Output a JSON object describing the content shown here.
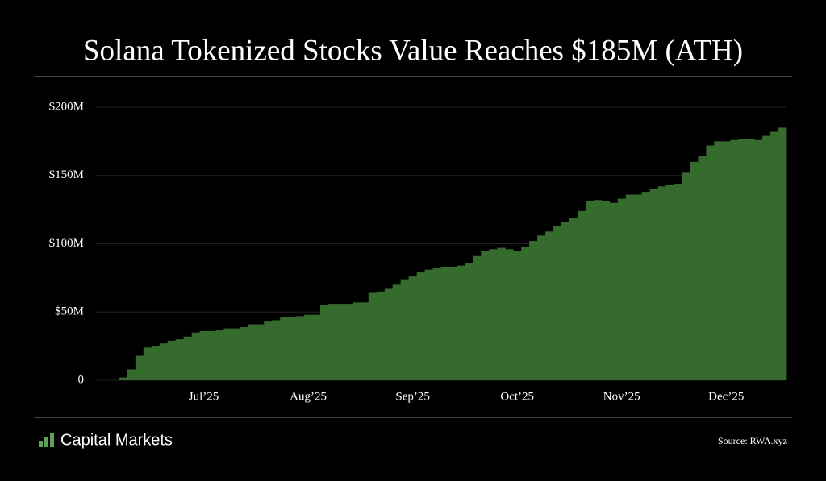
{
  "chart_data": {
    "type": "bar",
    "title": "Solana Tokenized Stocks Value Reaches $185M (ATH)",
    "categories": [
      null,
      null,
      null,
      null,
      null,
      null,
      null,
      null,
      null,
      null,
      null,
      null,
      null,
      "Jul’25",
      null,
      null,
      null,
      null,
      null,
      null,
      null,
      null,
      null,
      null,
      null,
      null,
      "Aug’25",
      null,
      null,
      null,
      null,
      null,
      null,
      null,
      null,
      null,
      null,
      null,
      null,
      "Sep’25",
      null,
      null,
      null,
      null,
      null,
      null,
      null,
      null,
      null,
      null,
      null,
      null,
      "Oct’25",
      null,
      null,
      null,
      null,
      null,
      null,
      null,
      null,
      null,
      null,
      null,
      null,
      "Nov’25",
      null,
      null,
      null,
      null,
      null,
      null,
      null,
      null,
      null,
      null,
      null,
      null,
      "Dec’25",
      null,
      null,
      null,
      null,
      null,
      null,
      null
    ],
    "values": [
      0,
      0,
      0,
      2,
      8,
      18,
      24,
      25,
      27,
      29,
      30,
      32,
      35,
      36,
      36,
      37,
      38,
      38,
      39,
      41,
      41,
      43,
      44,
      46,
      46,
      47,
      48,
      48,
      55,
      56,
      56,
      56,
      57,
      57,
      64,
      65,
      67,
      70,
      74,
      76,
      79,
      81,
      82,
      83,
      83,
      84,
      86,
      91,
      95,
      96,
      97,
      96,
      95,
      98,
      102,
      106,
      109,
      113,
      116,
      119,
      124,
      131,
      132,
      131,
      130,
      133,
      136,
      136,
      138,
      140,
      142,
      143,
      144,
      152,
      160,
      164,
      172,
      175,
      175,
      176,
      177,
      177,
      176,
      179,
      182,
      185
    ],
    "color": "#356b2c",
    "ylim": [
      0,
      200
    ],
    "yticks": [
      0,
      {
        "value": 50,
        "label": "$50M"
      },
      {
        "value": 100,
        "label": "$100M"
      },
      {
        "value": 150,
        "label": "$150M"
      },
      {
        "value": 200,
        "label": "$200M"
      }
    ],
    "grid": true,
    "source": "Source: RWA.xyz",
    "brand": "Capital Markets"
  }
}
